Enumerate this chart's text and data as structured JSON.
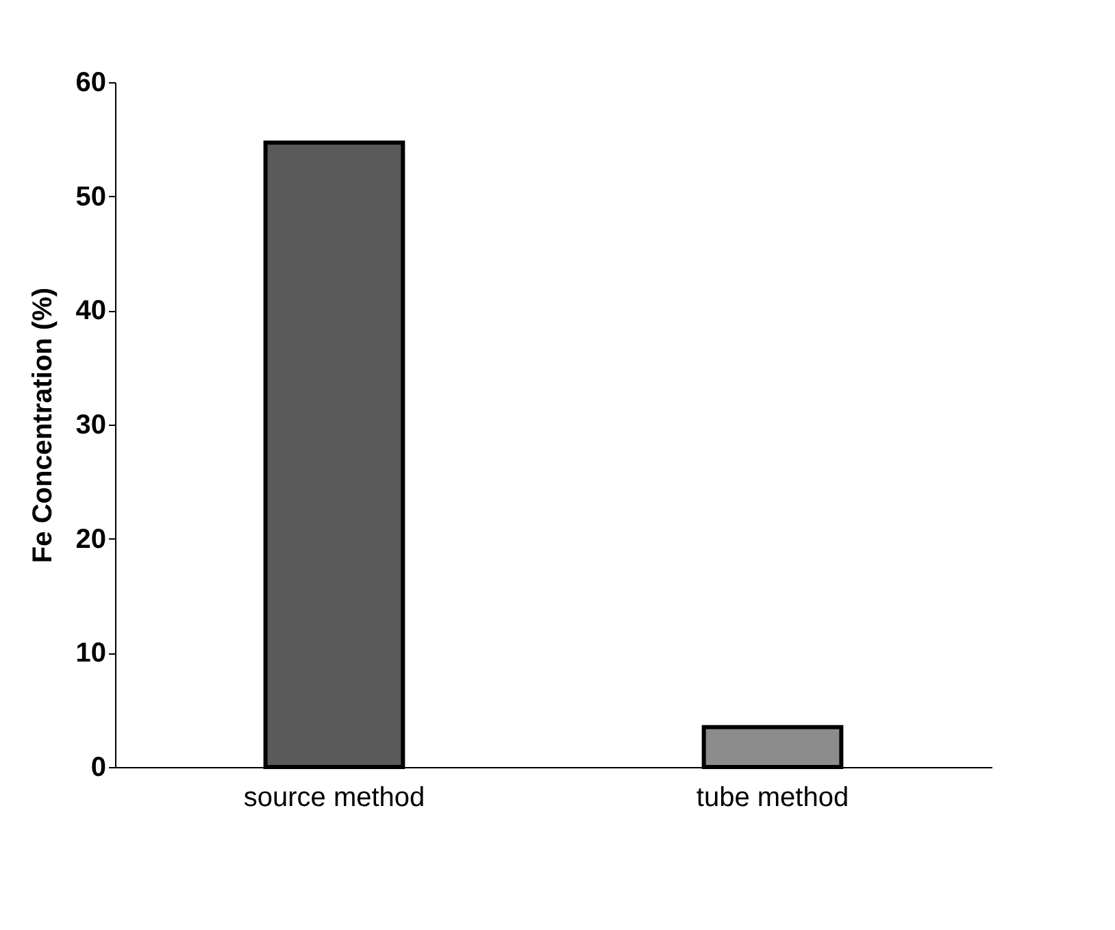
{
  "chart_data": {
    "type": "bar",
    "ylabel": "Fe Concentration (%)",
    "categories": [
      "source method",
      "tube method"
    ],
    "values": [
      54.7,
      3.5
    ],
    "colors": [
      "#5a5a5a",
      "#8c8c8c"
    ],
    "ylim": [
      0,
      60
    ],
    "yticks": [
      0,
      10,
      20,
      30,
      40,
      50,
      60
    ],
    "grid": false
  }
}
